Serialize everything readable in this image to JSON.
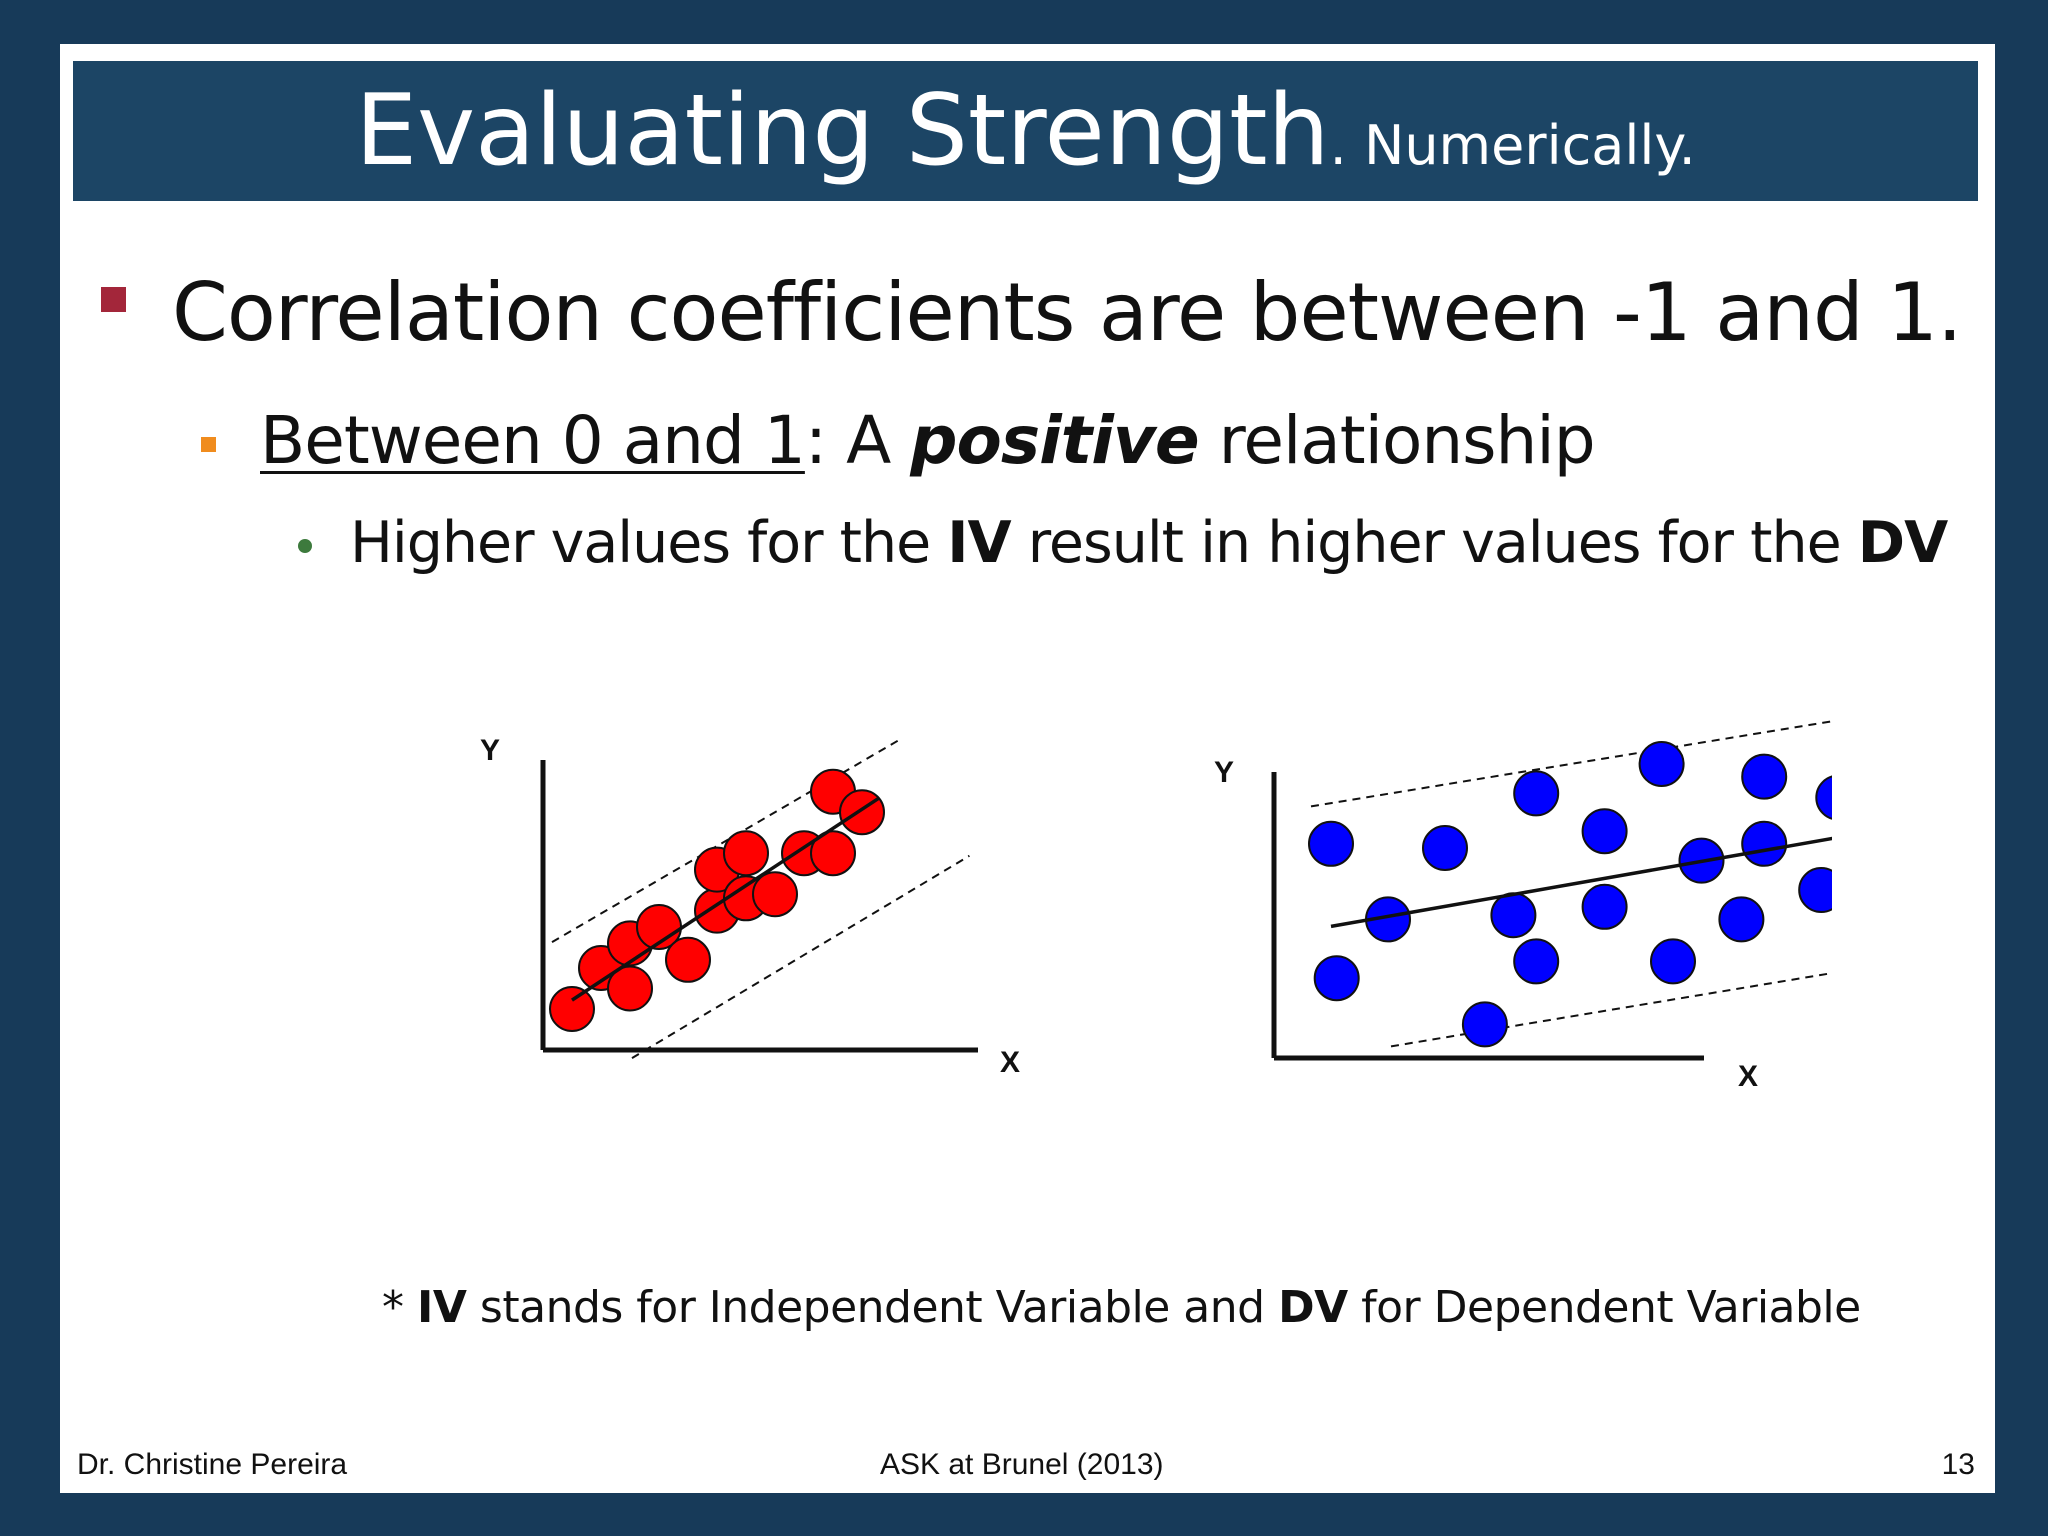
{
  "title": {
    "main": "Evaluating Strength",
    "sub": ". Numerically."
  },
  "bullets": {
    "level1": "Correlation coefficients are between -1 and 1.",
    "level2": {
      "underlined": "Between 0 and 1",
      "pre": ": A ",
      "emph": "positive",
      "post": " relationship"
    },
    "level3": {
      "p1": "Higher values for the ",
      "b1": "IV",
      "p2": " result in higher values for the ",
      "b2": "DV"
    }
  },
  "charts": [
    {
      "x_label": "X",
      "y_label": "Y",
      "point_color": "#ff0000",
      "points": [
        [
          1,
          1
        ],
        [
          2,
          2
        ],
        [
          3,
          1.5
        ],
        [
          3,
          2.6
        ],
        [
          4,
          3
        ],
        [
          5,
          2.2
        ],
        [
          6,
          3.4
        ],
        [
          6,
          4.4
        ],
        [
          7,
          3.7
        ],
        [
          7,
          4.8
        ],
        [
          8,
          3.8
        ],
        [
          9,
          4.8
        ],
        [
          10,
          4.8
        ],
        [
          10,
          6.3
        ],
        [
          11,
          5.8
        ]
      ]
    },
    {
      "x_label": "X",
      "y_label": "Y",
      "point_color": "#0000ff",
      "points": [
        [
          1,
          5.1
        ],
        [
          2,
          3.3
        ],
        [
          1.1,
          1.9
        ],
        [
          3,
          5
        ],
        [
          3.7,
          0.8
        ],
        [
          4.2,
          3.4
        ],
        [
          4.6,
          6.3
        ],
        [
          5.8,
          5.4
        ],
        [
          4.6,
          2.3
        ],
        [
          5.8,
          3.6
        ],
        [
          6.8,
          7
        ],
        [
          7,
          2.3
        ],
        [
          7.5,
          4.7
        ],
        [
          8.6,
          6.7
        ],
        [
          8.2,
          3.3
        ],
        [
          8.6,
          5.1
        ],
        [
          9.6,
          4
        ],
        [
          9.9,
          6.2
        ]
      ]
    }
  ],
  "footnote": {
    "star": "* ",
    "b1": "IV",
    "t1": " stands for Independent Variable and ",
    "b2": "DV",
    "t2": " for Dependent Variable"
  },
  "footer": {
    "left": "Dr. Christine Pereira",
    "middle": "ASK at Brunel (2013)",
    "page": "13"
  },
  "colors": {
    "background": "#173a59",
    "title_bar": "#1c4565",
    "bullet1": "#a3263a",
    "bullet2": "#f08c1e",
    "bullet3": "#3d7a3d"
  }
}
